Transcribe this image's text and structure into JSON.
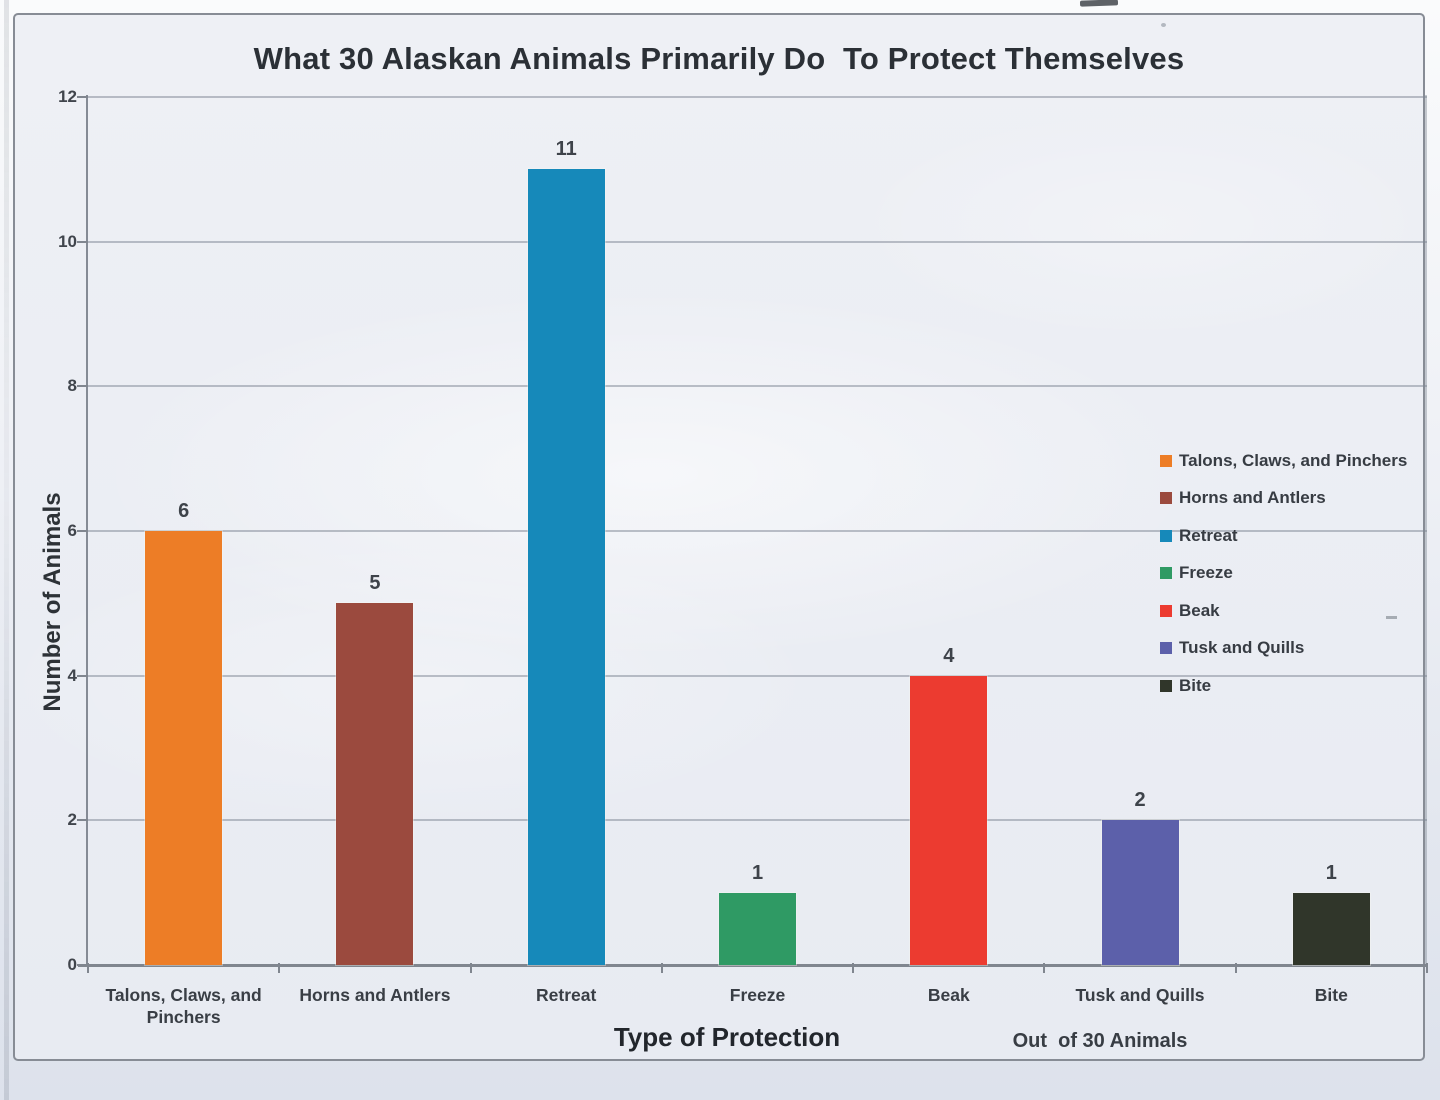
{
  "chart_data": {
    "type": "bar",
    "title": "What 30 Alaskan Animals Primarily Do  To Protect Themselves",
    "categories": [
      "Talons, Claws, and Pinchers",
      "Horns and Antlers",
      "Retreat",
      "Freeze",
      "Beak",
      "Tusk and Quills",
      "Bite"
    ],
    "values": [
      6,
      5,
      11,
      1,
      4,
      2,
      1
    ],
    "bar_colors": [
      "#ED7D26",
      "#9B4A3E",
      "#1689BA",
      "#2F9A64",
      "#EC3B30",
      "#5C60AA",
      "#30362A"
    ],
    "xlabel": "Type of Protection",
    "ylabel": "Number of Animals",
    "note": "Out  of 30 Animals",
    "ylim": [
      0,
      12
    ],
    "yticks": [
      0,
      2,
      4,
      6,
      8,
      10,
      12
    ],
    "grid": true,
    "legend_position": "inside-right",
    "legend_entries": [
      {
        "label": "Talons, Claws, and Pinchers",
        "color": "#ED7D26"
      },
      {
        "label": "Horns and Antlers",
        "color": "#9B4A3E"
      },
      {
        "label": "Retreat",
        "color": "#1689BA"
      },
      {
        "label": "Freeze",
        "color": "#2F9A64"
      },
      {
        "label": "Beak",
        "color": "#EC3B30"
      },
      {
        "label": "Tusk and Quills",
        "color": "#5C60AA"
      },
      {
        "label": "Bite",
        "color": "#30362A"
      }
    ]
  }
}
